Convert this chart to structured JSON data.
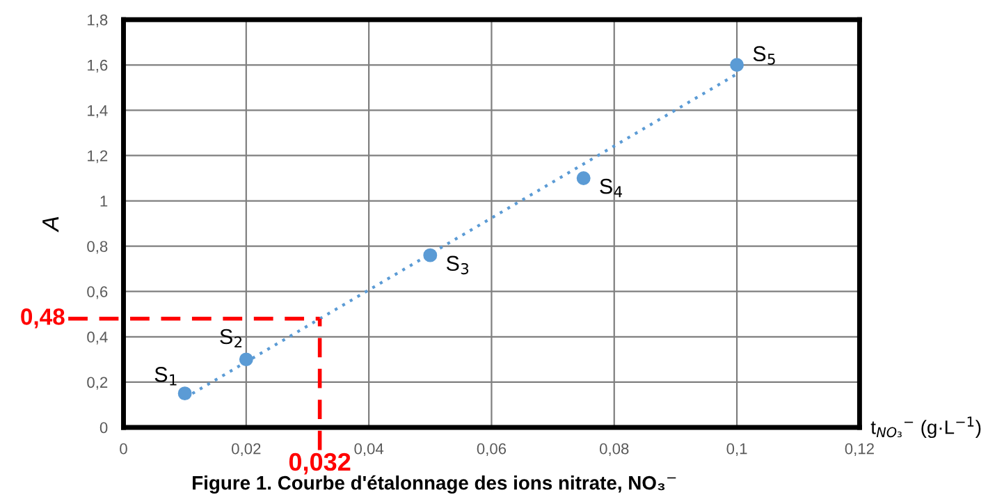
{
  "chart_data": {
    "type": "scatter",
    "title": "Figure 1. Courbe d'étalonnage des ions nitrate, NO₃$^{−}$",
    "xlabel": "t$_{NO₃}$$^{−}$ (g·L$^{−1}$)",
    "ylabel": "A",
    "x": [
      0.01,
      0.02,
      0.05,
      0.075,
      0.1
    ],
    "series": [
      {
        "color": "#5b9bd5",
        "marker": "circle",
        "values": [
          0.15,
          0.3,
          0.76,
          1.1,
          1.6
        ]
      },
      {
        "type": "line",
        "color": "#5b9bd5",
        "line_style": "dotted",
        "marker": "none",
        "x": [
          0.01,
          0.1
        ],
        "values": [
          0.13,
          1.56
        ]
      }
    ],
    "xlim": [
      0,
      0.12
    ],
    "ylim": [
      0,
      1.8
    ],
    "xticks": [
      0,
      {
        "value": 0.02,
        "label": "0,02"
      },
      {
        "value": 0.04,
        "label": "0,04"
      },
      {
        "value": 0.06,
        "label": "0,06"
      },
      {
        "value": 0.08,
        "label": "0,08"
      },
      {
        "value": 0.1,
        "label": "0,1"
      },
      {
        "value": 0.12,
        "label": "0,12"
      }
    ],
    "yticks": [
      0,
      {
        "value": 0.2,
        "label": "0,2"
      },
      {
        "value": 0.4,
        "label": "0,4"
      },
      {
        "value": 0.6,
        "label": "0,6"
      },
      {
        "value": 0.8,
        "label": "0,8"
      },
      1,
      {
        "value": 1.2,
        "label": "1,2"
      },
      {
        "value": 1.4,
        "label": "1,4"
      },
      {
        "value": 1.6,
        "label": "1,6"
      },
      {
        "value": 1.8,
        "label": "1,8"
      }
    ],
    "grid": true,
    "ref_lines": [
      {
        "axis": "y",
        "value": 0.48,
        "label": "0,48",
        "color": "#ff0000",
        "line_style": "dashed"
      },
      {
        "axis": "x",
        "value": 0.032,
        "label": "0,032",
        "color": "#ff0000",
        "line_style": "dashed"
      }
    ],
    "annotations": [
      {
        "text": "S$_{1}$",
        "x": 0.01,
        "y": 0.15
      },
      {
        "text": "S$_{2}$",
        "x": 0.02,
        "y": 0.3
      },
      {
        "text": "S$_{3}$",
        "x": 0.05,
        "y": 0.76
      },
      {
        "text": "S$_{4}$",
        "x": 0.075,
        "y": 1.1
      },
      {
        "text": "S$_{5}$",
        "x": 0.1,
        "y": 1.6
      }
    ]
  }
}
